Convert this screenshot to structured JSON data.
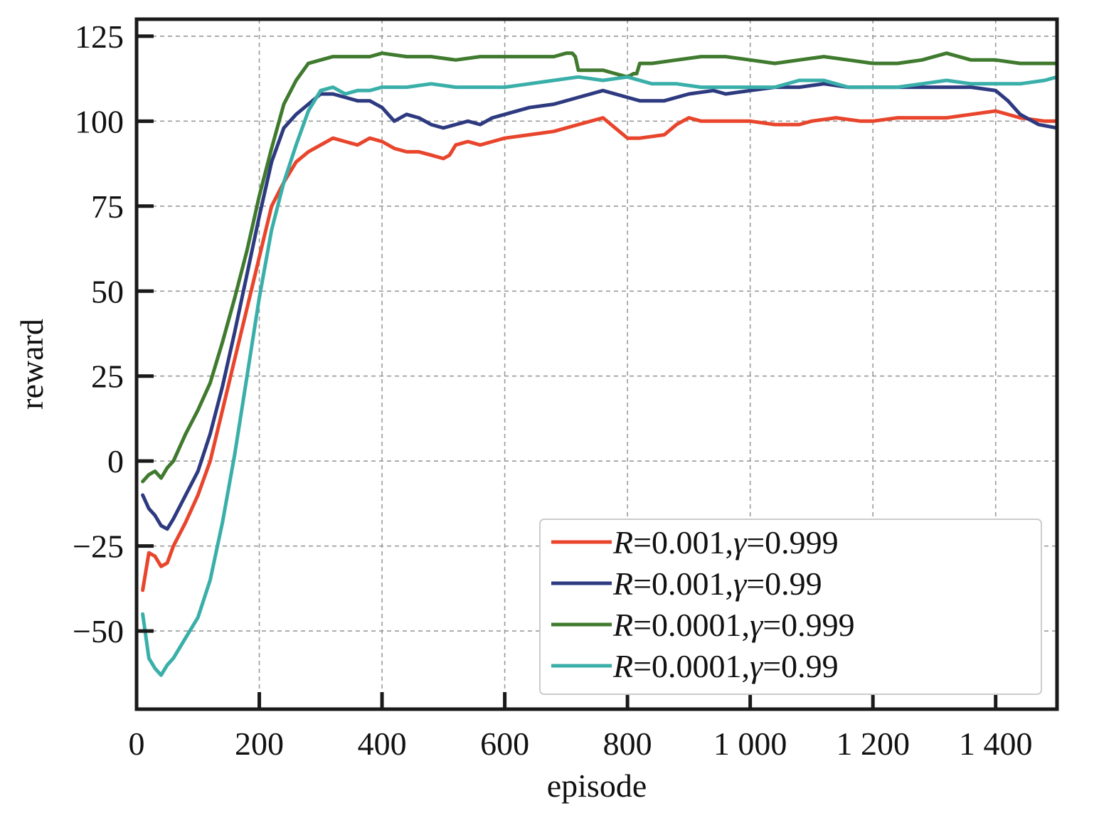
{
  "chart_data": {
    "type": "line",
    "xlabel": "episode",
    "ylabel": "reward",
    "xlim": [
      0,
      1500
    ],
    "ylim": [
      -73,
      130
    ],
    "xticks": [
      0,
      200,
      400,
      600,
      800,
      1000,
      1200,
      1400
    ],
    "xtick_labels": [
      "0",
      "200",
      "400",
      "600",
      "800",
      "1 000",
      "1 200",
      "1 400"
    ],
    "yticks": [
      -50,
      -25,
      0,
      25,
      50,
      75,
      100,
      125
    ],
    "ytick_labels": [
      "−50",
      "−25",
      "0",
      "25",
      "50",
      "75",
      "100",
      "125"
    ],
    "grid": true,
    "legend_position": "bottom-right",
    "series": [
      {
        "name_parts": [
          "R",
          "=0.001,",
          "γ",
          "=0.999"
        ],
        "color": "#e8452c",
        "x": [
          10,
          20,
          30,
          40,
          50,
          60,
          80,
          100,
          120,
          140,
          160,
          180,
          200,
          220,
          240,
          260,
          280,
          300,
          320,
          340,
          360,
          380,
          400,
          420,
          440,
          460,
          480,
          500,
          510,
          520,
          540,
          560,
          580,
          600,
          640,
          680,
          720,
          760,
          780,
          800,
          820,
          860,
          880,
          900,
          920,
          960,
          1000,
          1040,
          1080,
          1100,
          1140,
          1180,
          1200,
          1240,
          1280,
          1320,
          1360,
          1400,
          1440,
          1480,
          1500
        ],
        "y": [
          -38,
          -27,
          -28,
          -31,
          -30,
          -25,
          -18,
          -10,
          0,
          15,
          30,
          45,
          60,
          75,
          82,
          88,
          91,
          93,
          95,
          94,
          93,
          95,
          94,
          92,
          91,
          91,
          90,
          89,
          90,
          93,
          94,
          93,
          94,
          95,
          96,
          97,
          99,
          101,
          98,
          95,
          95,
          96,
          99,
          101,
          100,
          100,
          100,
          99,
          99,
          100,
          101,
          100,
          100,
          101,
          101,
          101,
          102,
          103,
          101,
          100,
          100
        ]
      },
      {
        "name_parts": [
          "R",
          "=0.001,",
          "γ",
          "=0.99"
        ],
        "color": "#2e3a80",
        "x": [
          10,
          20,
          30,
          40,
          50,
          60,
          80,
          100,
          120,
          140,
          160,
          180,
          200,
          220,
          240,
          260,
          280,
          300,
          320,
          340,
          360,
          380,
          400,
          420,
          440,
          460,
          480,
          500,
          520,
          540,
          560,
          580,
          600,
          640,
          680,
          720,
          760,
          800,
          820,
          860,
          900,
          940,
          960,
          1000,
          1040,
          1080,
          1120,
          1160,
          1200,
          1240,
          1280,
          1320,
          1360,
          1400,
          1420,
          1440,
          1470,
          1500
        ],
        "y": [
          -10,
          -14,
          -16,
          -19,
          -20,
          -17,
          -10,
          -3,
          8,
          22,
          38,
          55,
          72,
          88,
          98,
          102,
          105,
          108,
          108,
          107,
          106,
          106,
          104,
          100,
          102,
          101,
          99,
          98,
          99,
          100,
          99,
          101,
          102,
          104,
          105,
          107,
          109,
          107,
          106,
          106,
          108,
          109,
          108,
          109,
          110,
          110,
          111,
          110,
          110,
          110,
          110,
          110,
          110,
          109,
          106,
          102,
          99,
          98
        ]
      },
      {
        "name_parts": [
          "R",
          "=0.0001,",
          "γ",
          "=0.999"
        ],
        "color": "#3f7a2e",
        "x": [
          10,
          20,
          30,
          40,
          50,
          60,
          80,
          100,
          120,
          140,
          160,
          180,
          200,
          220,
          240,
          260,
          280,
          300,
          320,
          340,
          360,
          380,
          400,
          440,
          480,
          520,
          560,
          600,
          640,
          680,
          700,
          710,
          715,
          720,
          740,
          760,
          780,
          800,
          810,
          815,
          820,
          840,
          880,
          920,
          960,
          1000,
          1040,
          1080,
          1120,
          1160,
          1200,
          1240,
          1280,
          1320,
          1360,
          1400,
          1440,
          1480,
          1500
        ],
        "y": [
          -6,
          -4,
          -3,
          -5,
          -2,
          0,
          8,
          15,
          23,
          35,
          48,
          62,
          78,
          92,
          105,
          112,
          117,
          118,
          119,
          119,
          119,
          119,
          120,
          119,
          119,
          118,
          119,
          119,
          119,
          119,
          120,
          120,
          119,
          115,
          115,
          115,
          114,
          113,
          114,
          114,
          117,
          117,
          118,
          119,
          119,
          118,
          117,
          118,
          119,
          118,
          117,
          117,
          118,
          120,
          118,
          118,
          117,
          117,
          117
        ]
      },
      {
        "name_parts": [
          "R",
          "=0.0001,",
          "γ",
          "=0.99"
        ],
        "color": "#3aafa9",
        "x": [
          10,
          20,
          30,
          40,
          50,
          60,
          80,
          100,
          120,
          140,
          160,
          180,
          200,
          220,
          240,
          260,
          280,
          300,
          320,
          340,
          360,
          380,
          400,
          440,
          480,
          520,
          560,
          600,
          640,
          680,
          720,
          760,
          800,
          840,
          880,
          920,
          960,
          1000,
          1040,
          1080,
          1120,
          1160,
          1200,
          1240,
          1280,
          1320,
          1360,
          1400,
          1440,
          1480,
          1500
        ],
        "y": [
          -45,
          -58,
          -61,
          -63,
          -60,
          -58,
          -52,
          -46,
          -35,
          -18,
          2,
          25,
          48,
          68,
          82,
          93,
          103,
          109,
          110,
          108,
          109,
          109,
          110,
          110,
          111,
          110,
          110,
          110,
          111,
          112,
          113,
          112,
          113,
          111,
          111,
          110,
          110,
          110,
          110,
          112,
          112,
          110,
          110,
          110,
          111,
          112,
          111,
          111,
          111,
          112,
          113
        ]
      }
    ]
  }
}
